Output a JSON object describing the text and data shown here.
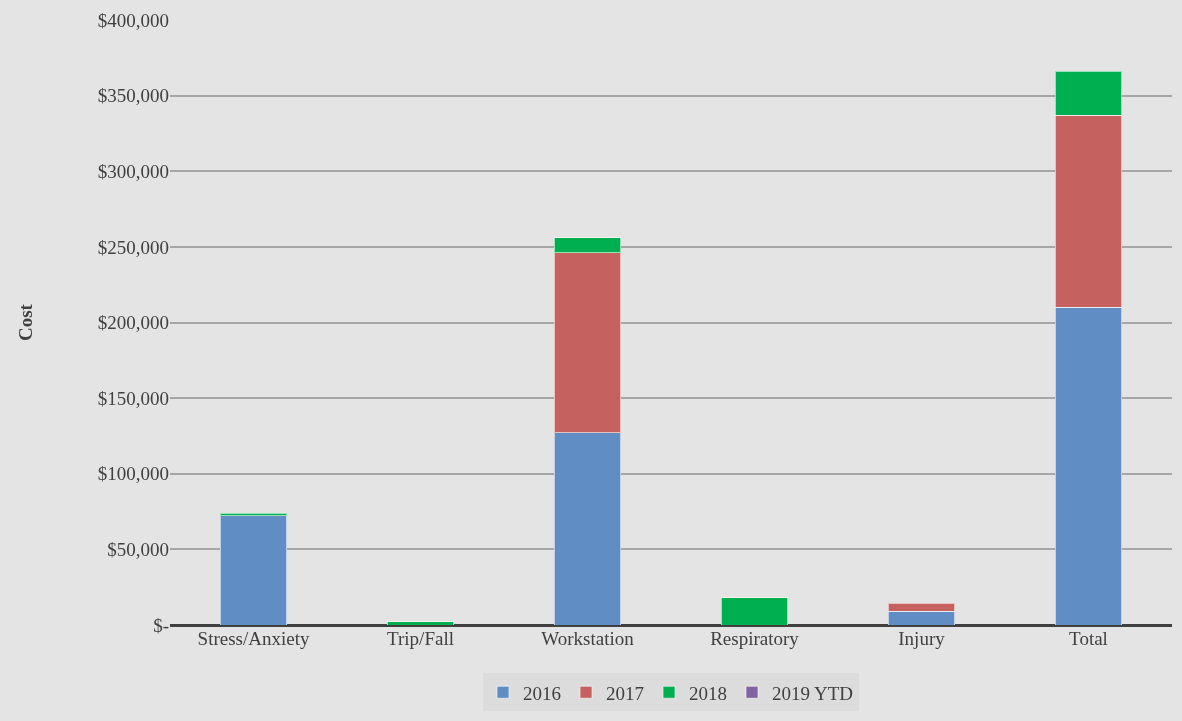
{
  "chart_data": {
    "type": "bar",
    "stacked": true,
    "ylabel": "Cost",
    "categories": [
      "Stress/Anxiety",
      "Trip/Fall",
      "Workstation",
      "Respiratory",
      "Injury",
      "Total"
    ],
    "series": [
      {
        "name": "2016",
        "color": "#5f8dc4",
        "values": [
          72400,
          null,
          127000,
          null,
          9200,
          210000
        ]
      },
      {
        "name": "2017",
        "color": "#c5625f",
        "values": [
          null,
          null,
          119000,
          null,
          5300,
          127000
        ]
      },
      {
        "name": "2018",
        "color": "#00b050",
        "values": [
          1500,
          2000,
          10000,
          18000,
          null,
          29000
        ]
      },
      {
        "name": "2019 YTD",
        "color": "#8064a2",
        "values": [
          null,
          null,
          null,
          null,
          null,
          null
        ]
      }
    ],
    "ylim": [
      0,
      400000
    ],
    "yticks": [
      {
        "value": 0,
        "label": "$-"
      },
      {
        "value": 50000,
        "label": "$50,000"
      },
      {
        "value": 100000,
        "label": "$100,000"
      },
      {
        "value": 150000,
        "label": "$150,000"
      },
      {
        "value": 200000,
        "label": "$200,000"
      },
      {
        "value": 250000,
        "label": "$250,000"
      },
      {
        "value": 300000,
        "label": "$300,000"
      },
      {
        "value": 350000,
        "label": "$350,000"
      },
      {
        "value": 400000,
        "label": "$400,000"
      }
    ],
    "grid": "y",
    "legend": "bottom"
  }
}
